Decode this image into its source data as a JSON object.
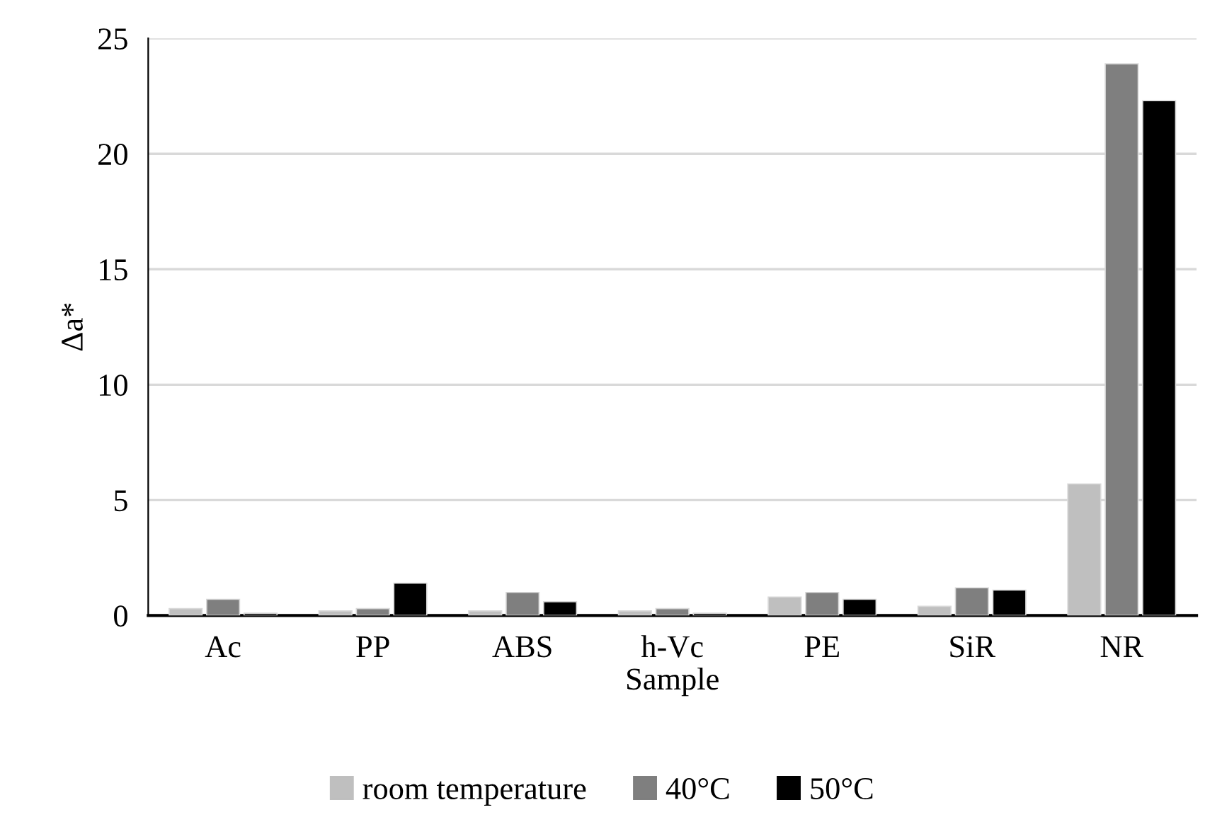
{
  "chart_data": {
    "type": "bar",
    "xlabel": "Sample",
    "ylabel": "Δa*",
    "categories": [
      "Ac",
      "PP",
      "ABS",
      "h-Vc",
      "PE",
      "SiR",
      "NR"
    ],
    "series": [
      {
        "name": "room temperature",
        "color": "#bfbfbf",
        "values": [
          0.3,
          0.2,
          0.2,
          0.2,
          0.8,
          0.4,
          5.7
        ]
      },
      {
        "name": "40°C",
        "color": "#7f7f7f",
        "values": [
          0.7,
          0.3,
          1.0,
          0.3,
          1.0,
          1.2,
          23.9
        ]
      },
      {
        "name": "50°C",
        "color": "#000000",
        "values": [
          0.1,
          1.4,
          0.6,
          0.1,
          0.7,
          1.1,
          22.3
        ]
      }
    ],
    "ylim": [
      0,
      25
    ],
    "yticks": [
      0,
      5,
      10,
      15,
      20,
      25
    ],
    "grid": "y",
    "legend": "bottom"
  }
}
